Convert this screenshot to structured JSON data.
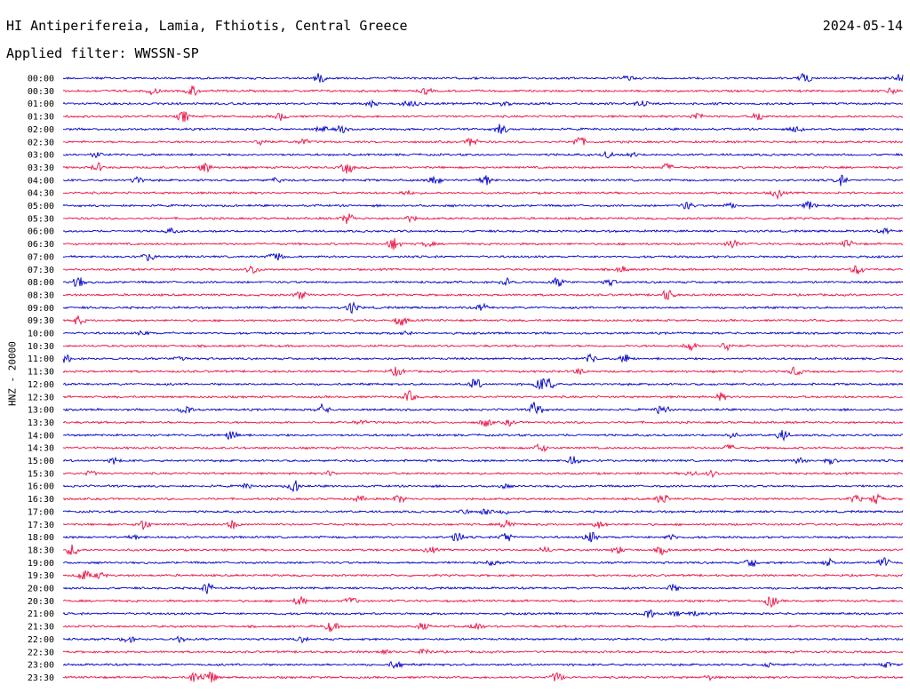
{
  "header": {
    "station": "HI Antiperifereia, Lamia, Fthiotis, Central Greece",
    "date": "2024-05-14",
    "filter": "Applied filter: WWSSN-SP"
  },
  "chart_data": {
    "type": "line",
    "title": "HI Antiperifereia, Lamia, Fthiotis, Central Greece",
    "ylabel": "HNZ - 20000",
    "xlabel": "",
    "colors": {
      "blue": "#0000cc",
      "red": "#ee1144"
    },
    "rows": [
      {
        "label": "00:00",
        "color": "blue"
      },
      {
        "label": "00:30",
        "color": "red"
      },
      {
        "label": "01:00",
        "color": "blue"
      },
      {
        "label": "01:30",
        "color": "red"
      },
      {
        "label": "02:00",
        "color": "blue"
      },
      {
        "label": "02:30",
        "color": "red"
      },
      {
        "label": "03:00",
        "color": "blue"
      },
      {
        "label": "03:30",
        "color": "red"
      },
      {
        "label": "04:00",
        "color": "blue"
      },
      {
        "label": "04:30",
        "color": "red"
      },
      {
        "label": "05:00",
        "color": "blue"
      },
      {
        "label": "05:30",
        "color": "red"
      },
      {
        "label": "06:00",
        "color": "blue"
      },
      {
        "label": "06:30",
        "color": "red"
      },
      {
        "label": "07:00",
        "color": "blue"
      },
      {
        "label": "07:30",
        "color": "red"
      },
      {
        "label": "08:00",
        "color": "blue"
      },
      {
        "label": "08:30",
        "color": "red"
      },
      {
        "label": "09:00",
        "color": "blue"
      },
      {
        "label": "09:30",
        "color": "red"
      },
      {
        "label": "10:00",
        "color": "blue"
      },
      {
        "label": "10:30",
        "color": "red"
      },
      {
        "label": "11:00",
        "color": "blue"
      },
      {
        "label": "11:30",
        "color": "red"
      },
      {
        "label": "12:00",
        "color": "blue"
      },
      {
        "label": "12:30",
        "color": "red"
      },
      {
        "label": "13:00",
        "color": "blue"
      },
      {
        "label": "13:30",
        "color": "red"
      },
      {
        "label": "14:00",
        "color": "blue"
      },
      {
        "label": "14:30",
        "color": "red"
      },
      {
        "label": "15:00",
        "color": "blue"
      },
      {
        "label": "15:30",
        "color": "red"
      },
      {
        "label": "16:00",
        "color": "blue"
      },
      {
        "label": "16:30",
        "color": "red"
      },
      {
        "label": "17:00",
        "color": "blue"
      },
      {
        "label": "17:30",
        "color": "red"
      },
      {
        "label": "18:00",
        "color": "blue"
      },
      {
        "label": "18:30",
        "color": "red"
      },
      {
        "label": "19:00",
        "color": "blue"
      },
      {
        "label": "19:30",
        "color": "red"
      },
      {
        "label": "20:00",
        "color": "blue"
      },
      {
        "label": "20:30",
        "color": "red"
      },
      {
        "label": "21:00",
        "color": "blue"
      },
      {
        "label": "21:30",
        "color": "red"
      },
      {
        "label": "22:00",
        "color": "blue"
      },
      {
        "label": "22:30",
        "color": "red"
      },
      {
        "label": "23:00",
        "color": "blue"
      },
      {
        "label": "23:30",
        "color": "red"
      }
    ]
  }
}
